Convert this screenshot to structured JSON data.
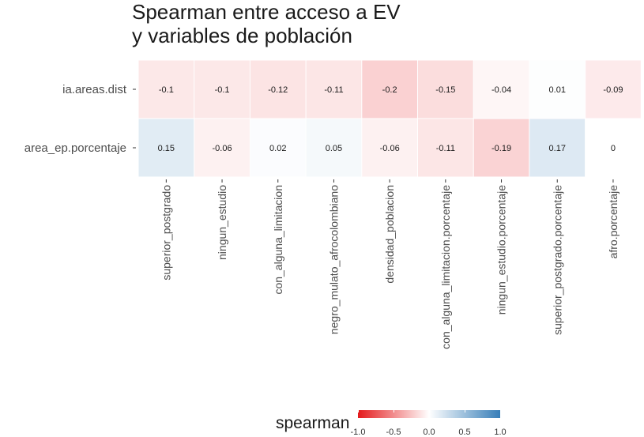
{
  "chart_data": {
    "type": "heatmap",
    "title_lines": [
      "Spearman entre acceso a EV",
      "y variables de población"
    ],
    "xlabel": "",
    "ylabel": "",
    "columns": [
      "superior_postgrado",
      "ningun_estudio",
      "con_alguna_limitacion",
      "negro_mulato_afrocolombiano",
      "densidad_poblacion",
      "con_alguna_limitacion.porcentaje",
      "ningun_estudio.porcentaje",
      "superior_postgrado.porcentaje",
      "afro.porcentaje"
    ],
    "rows": [
      "ia.areas.dist",
      "area_ep.porcentaje"
    ],
    "values": [
      [
        -0.1,
        -0.1,
        -0.12,
        -0.11,
        -0.2,
        -0.15,
        -0.04,
        0.01,
        -0.09
      ],
      [
        0.15,
        -0.06,
        0.02,
        0.05,
        -0.06,
        -0.11,
        -0.19,
        0.17,
        0
      ]
    ],
    "labels": [
      [
        "-0.1",
        "-0.1",
        "-0.12",
        "-0.11",
        "-0.2",
        "-0.15",
        "-0.04",
        "0.01",
        "-0.09"
      ],
      [
        "0.15",
        "-0.06",
        "0.02",
        "0.05",
        "-0.06",
        "-0.11",
        "-0.19",
        "0.17",
        "0"
      ]
    ],
    "color_scale": {
      "title": "spearman",
      "limits": [
        -1,
        1
      ],
      "low": "#e41a1c",
      "mid": "#ffffff",
      "high": "#377eb8",
      "ticks": [
        "-1.0",
        "-0.5",
        "0.0",
        "0.5",
        "1.0"
      ],
      "tick_values": [
        -1,
        -0.5,
        0,
        0.5,
        1
      ]
    },
    "legend_position": "bottom",
    "grid": false
  }
}
